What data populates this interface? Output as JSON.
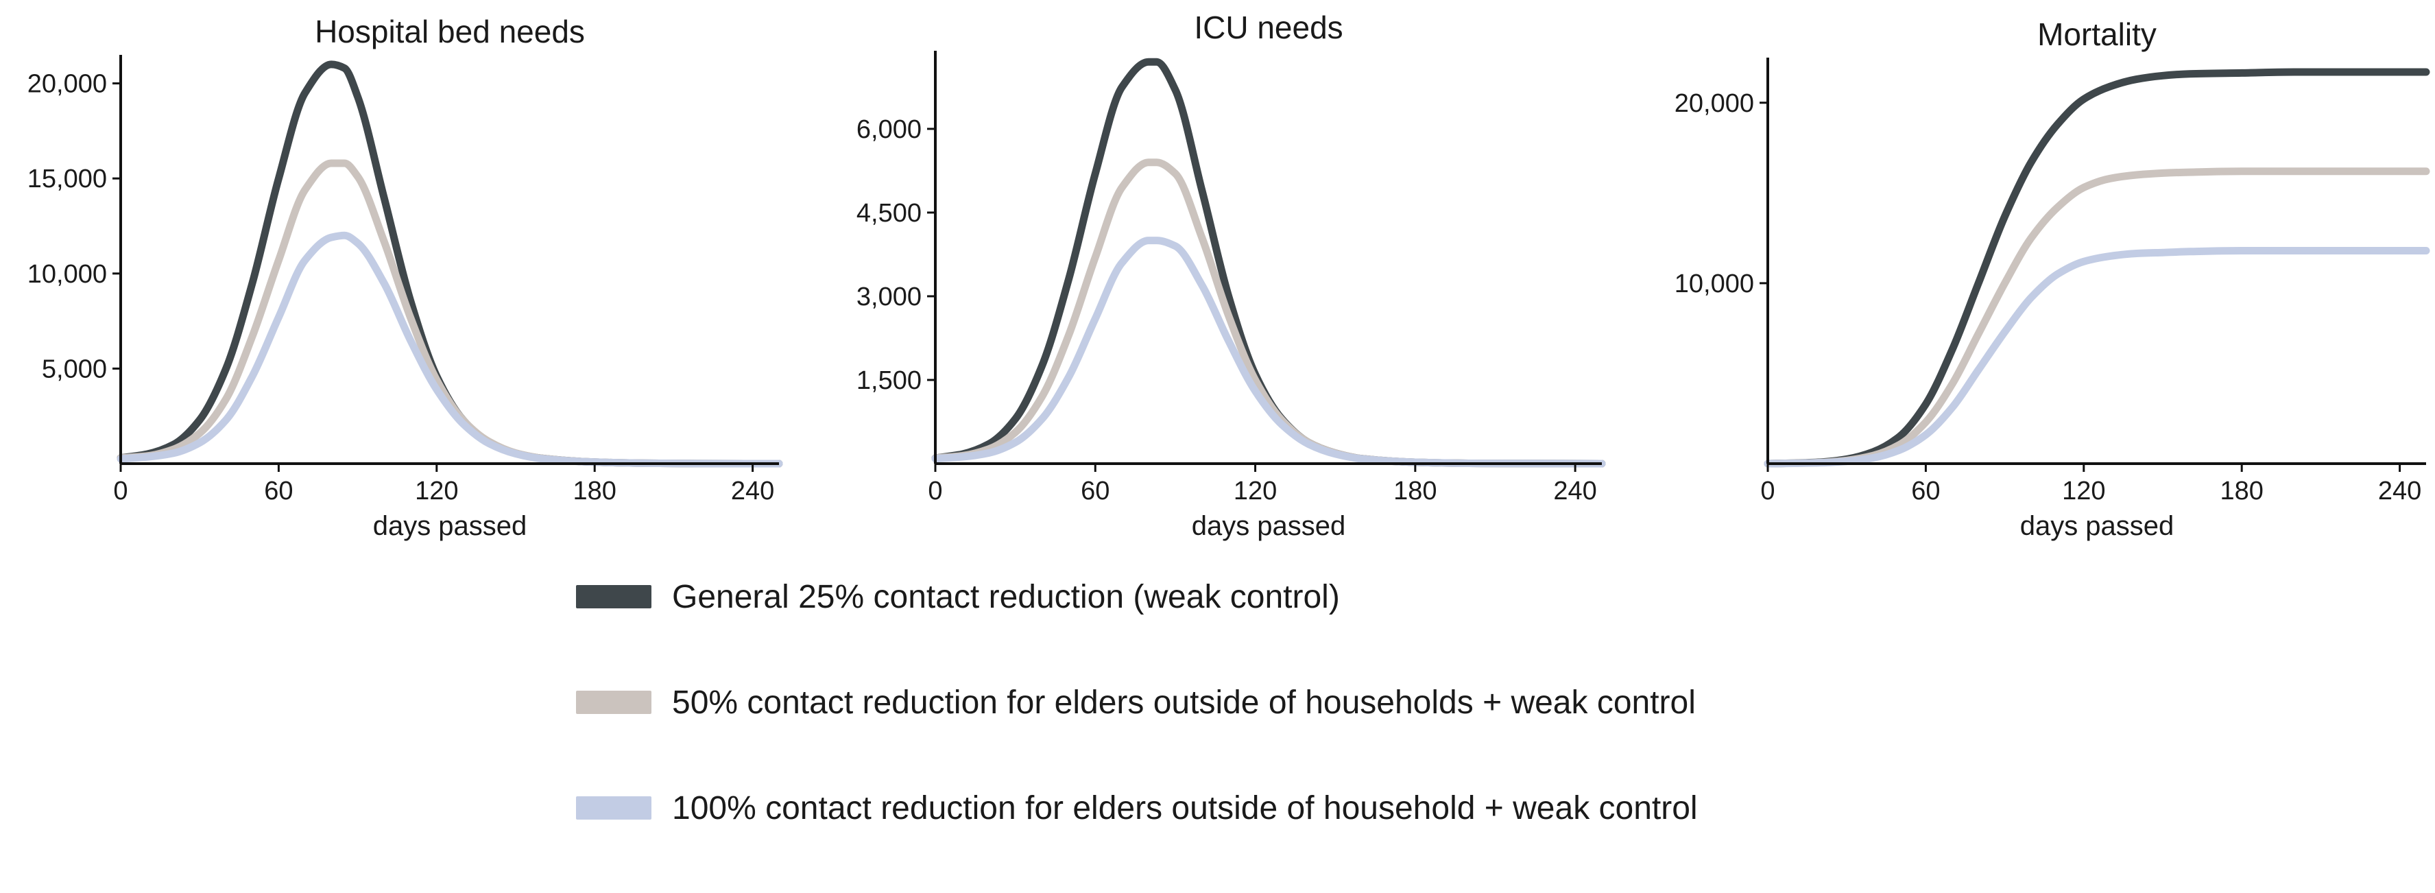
{
  "chart_data": [
    {
      "type": "line",
      "title": "Hospital bed needs",
      "xlabel": "days passed",
      "ylabel": "",
      "xlim": [
        0,
        250
      ],
      "ylim": [
        0,
        21500
      ],
      "xticks": [
        0,
        60,
        120,
        180,
        240
      ],
      "yticks": [
        5000,
        10000,
        15000,
        20000
      ],
      "xtick_labels": [
        "0",
        "60",
        "120",
        "180",
        "240"
      ],
      "ytick_labels": [
        "5,000",
        "10,000",
        "15,000",
        "20,000"
      ],
      "grid": false,
      "x": [
        0,
        10,
        20,
        30,
        40,
        50,
        60,
        70,
        80,
        85,
        90,
        100,
        110,
        120,
        130,
        140,
        150,
        160,
        180,
        200,
        220,
        250
      ],
      "series": [
        {
          "name": "General 25% contact reduction (weak control)",
          "values": [
            300,
            500,
            1000,
            2300,
            5000,
            9500,
            15000,
            19500,
            21000,
            20800,
            19300,
            14000,
            8600,
            4600,
            2300,
            1100,
            550,
            280,
            80,
            20,
            5,
            0
          ]
        },
        {
          "name": "50% contact reduction for elders outside of households + weak control",
          "values": [
            300,
            400,
            750,
            1600,
            3400,
            6700,
            10700,
            14400,
            15800,
            15800,
            15100,
            11700,
            7700,
            4400,
            2300,
            1150,
            560,
            280,
            80,
            20,
            5,
            0
          ]
        },
        {
          "name": "100% contact reduction for elders outside of household + weak control",
          "values": [
            250,
            350,
            550,
            1100,
            2300,
            4600,
            7700,
            10700,
            11900,
            12000,
            11600,
            9500,
            6500,
            3900,
            2100,
            1050,
            520,
            260,
            80,
            20,
            5,
            0
          ]
        }
      ]
    },
    {
      "type": "line",
      "title": "ICU needs",
      "xlabel": "days passed",
      "ylabel": "",
      "xlim": [
        0,
        250
      ],
      "ylim": [
        0,
        7400
      ],
      "xticks": [
        0,
        60,
        120,
        180,
        240
      ],
      "yticks": [
        1500,
        3000,
        4500,
        6000
      ],
      "xtick_labels": [
        "0",
        "60",
        "120",
        "180",
        "240"
      ],
      "ytick_labels": [
        "1,500",
        "3,000",
        "4,500",
        "6,000"
      ],
      "grid": false,
      "x": [
        0,
        10,
        20,
        30,
        40,
        50,
        60,
        70,
        80,
        83,
        90,
        100,
        110,
        120,
        130,
        140,
        150,
        160,
        180,
        200,
        220,
        250
      ],
      "series": [
        {
          "name": "General 25% contact reduction (weak control)",
          "values": [
            100,
            170,
            350,
            800,
            1750,
            3300,
            5200,
            6750,
            7200,
            7200,
            6700,
            4900,
            3000,
            1600,
            800,
            380,
            190,
            90,
            25,
            6,
            2,
            0
          ]
        },
        {
          "name": "50% contact reduction for elders outside of households + weak control",
          "values": [
            100,
            140,
            260,
            560,
            1200,
            2300,
            3700,
            4950,
            5400,
            5400,
            5200,
            4050,
            2650,
            1500,
            780,
            380,
            190,
            90,
            25,
            6,
            2,
            0
          ]
        },
        {
          "name": "100% contact reduction for elders outside of household + weak control",
          "values": [
            90,
            120,
            190,
            380,
            800,
            1550,
            2600,
            3600,
            4000,
            4000,
            3900,
            3200,
            2200,
            1300,
            700,
            350,
            175,
            85,
            25,
            6,
            2,
            0
          ]
        }
      ]
    },
    {
      "type": "line",
      "title": "Mortality",
      "xlabel": "days passed",
      "ylabel": "",
      "xlim": [
        0,
        250
      ],
      "ylim": [
        0,
        22500
      ],
      "xticks": [
        0,
        60,
        120,
        180,
        240
      ],
      "yticks": [
        10000,
        20000
      ],
      "xtick_labels": [
        "0",
        "60",
        "120",
        "180",
        "240"
      ],
      "ytick_labels": [
        "10,000",
        "20,000"
      ],
      "grid": false,
      "x": [
        0,
        10,
        20,
        30,
        40,
        50,
        60,
        70,
        80,
        90,
        100,
        110,
        120,
        130,
        140,
        150,
        160,
        180,
        200,
        220,
        250
      ],
      "series": [
        {
          "name": "General 25% contact reduction (weak control)",
          "values": [
            0,
            30,
            80,
            250,
            650,
            1500,
            3300,
            6300,
            10000,
            13700,
            16700,
            18800,
            20200,
            20900,
            21300,
            21500,
            21600,
            21650,
            21700,
            21700,
            21700
          ]
        },
        {
          "name": "50% contact reduction for elders outside of households + weak control",
          "values": [
            0,
            25,
            60,
            180,
            450,
            1050,
            2300,
            4400,
            7200,
            10000,
            12500,
            14200,
            15300,
            15800,
            16000,
            16100,
            16150,
            16200,
            16200,
            16200,
            16200
          ]
        },
        {
          "name": "100% contact reduction for elders outside of household + weak control",
          "values": [
            0,
            20,
            45,
            130,
            320,
            750,
            1600,
            3100,
            5200,
            7300,
            9200,
            10500,
            11200,
            11500,
            11650,
            11700,
            11750,
            11800,
            11800,
            11800,
            11800
          ]
        }
      ]
    }
  ],
  "colors": [
    "#3f474b",
    "#cbc3be",
    "#c2cce4"
  ],
  "legend": {
    "placement": "bottom",
    "entries": [
      "General 25% contact reduction (weak control)",
      "50% contact reduction for elders outside of households + weak control",
      "100% contact reduction for elders outside of household + weak control"
    ]
  }
}
